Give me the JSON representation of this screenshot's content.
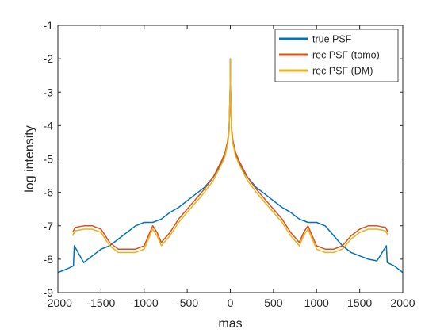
{
  "chart_data": {
    "type": "line",
    "xlabel": "mas",
    "ylabel": "log intensity",
    "xlim": [
      -2000,
      2000
    ],
    "ylim": [
      -9,
      -1
    ],
    "xticks": [
      -2000,
      -1500,
      -1000,
      -500,
      0,
      500,
      1000,
      1500,
      2000
    ],
    "yticks": [
      -9,
      -8,
      -7,
      -6,
      -5,
      -4,
      -3,
      -2,
      -1
    ],
    "grid": false,
    "legend_position": "top-right",
    "series": [
      {
        "name": "true PSF",
        "color": "#0072BD",
        "x": [
          -2000,
          -1900,
          -1820,
          -1810,
          -1700,
          -1600,
          -1500,
          -1400,
          -1300,
          -1200,
          -1100,
          -1000,
          -900,
          -800,
          -700,
          -600,
          -500,
          -400,
          -300,
          -200,
          -150,
          -100,
          -60,
          -30,
          -15,
          -8,
          -3,
          0,
          3,
          8,
          15,
          30,
          60,
          100,
          150,
          200,
          300,
          400,
          500,
          600,
          700,
          800,
          900,
          1000,
          1100,
          1200,
          1300,
          1400,
          1500,
          1600,
          1700,
          1810,
          1820,
          1900,
          2000
        ],
        "y": [
          -8.4,
          -8.3,
          -8.2,
          -7.6,
          -8.1,
          -7.9,
          -7.7,
          -7.6,
          -7.4,
          -7.2,
          -7.0,
          -6.9,
          -6.9,
          -6.8,
          -6.6,
          -6.45,
          -6.25,
          -6.05,
          -5.85,
          -5.55,
          -5.35,
          -5.1,
          -4.85,
          -4.5,
          -4.15,
          -3.5,
          -2.9,
          -2.0,
          -2.9,
          -3.5,
          -4.15,
          -4.5,
          -4.85,
          -5.1,
          -5.35,
          -5.55,
          -5.85,
          -6.05,
          -6.25,
          -6.45,
          -6.6,
          -6.8,
          -6.9,
          -6.9,
          -7.0,
          -7.3,
          -7.6,
          -7.8,
          -7.9,
          -8.0,
          -8.05,
          -7.6,
          -8.1,
          -8.2,
          -8.4
        ]
      },
      {
        "name": "rec PSF (tomo)",
        "color": "#D95319",
        "x": [
          -1830,
          -1800,
          -1700,
          -1600,
          -1500,
          -1400,
          -1300,
          -1200,
          -1100,
          -1000,
          -950,
          -900,
          -850,
          -800,
          -700,
          -600,
          -500,
          -400,
          -300,
          -200,
          -150,
          -100,
          -60,
          -30,
          -15,
          -8,
          -3,
          0,
          3,
          8,
          15,
          30,
          60,
          100,
          150,
          200,
          300,
          400,
          500,
          600,
          700,
          800,
          850,
          900,
          950,
          1000,
          1100,
          1200,
          1300,
          1400,
          1500,
          1600,
          1700,
          1800,
          1830
        ],
        "y": [
          -7.2,
          -7.05,
          -7.0,
          -7.0,
          -7.1,
          -7.5,
          -7.7,
          -7.7,
          -7.7,
          -7.6,
          -7.3,
          -7.0,
          -7.2,
          -7.5,
          -7.2,
          -6.8,
          -6.5,
          -6.2,
          -5.9,
          -5.55,
          -5.3,
          -5.05,
          -4.8,
          -4.45,
          -4.1,
          -3.5,
          -2.9,
          -2.0,
          -2.9,
          -3.5,
          -4.1,
          -4.45,
          -4.8,
          -5.05,
          -5.3,
          -5.55,
          -5.9,
          -6.2,
          -6.5,
          -6.8,
          -7.2,
          -7.5,
          -7.2,
          -7.0,
          -7.3,
          -7.6,
          -7.7,
          -7.7,
          -7.6,
          -7.3,
          -7.1,
          -7.0,
          -7.0,
          -7.05,
          -7.2
        ]
      },
      {
        "name": "rec PSF (DM)",
        "color": "#EDB120",
        "x": [
          -1830,
          -1800,
          -1700,
          -1600,
          -1500,
          -1400,
          -1300,
          -1200,
          -1100,
          -1000,
          -950,
          -900,
          -850,
          -800,
          -700,
          -600,
          -500,
          -400,
          -300,
          -200,
          -150,
          -100,
          -60,
          -30,
          -15,
          -8,
          -3,
          0,
          3,
          8,
          15,
          30,
          60,
          100,
          150,
          200,
          300,
          400,
          500,
          600,
          700,
          800,
          850,
          900,
          950,
          1000,
          1100,
          1200,
          1300,
          1400,
          1500,
          1600,
          1700,
          1800,
          1830
        ],
        "y": [
          -7.3,
          -7.15,
          -7.1,
          -7.1,
          -7.2,
          -7.6,
          -7.8,
          -7.8,
          -7.8,
          -7.7,
          -7.4,
          -7.1,
          -7.3,
          -7.6,
          -7.3,
          -6.9,
          -6.6,
          -6.3,
          -6.0,
          -5.65,
          -5.4,
          -5.15,
          -4.9,
          -4.55,
          -4.2,
          -3.55,
          -2.95,
          -2.0,
          -2.95,
          -3.55,
          -4.2,
          -4.55,
          -4.9,
          -5.15,
          -5.4,
          -5.65,
          -6.0,
          -6.3,
          -6.6,
          -6.9,
          -7.3,
          -7.6,
          -7.3,
          -7.1,
          -7.4,
          -7.7,
          -7.8,
          -7.8,
          -7.7,
          -7.4,
          -7.2,
          -7.1,
          -7.1,
          -7.15,
          -7.3
        ]
      }
    ]
  }
}
